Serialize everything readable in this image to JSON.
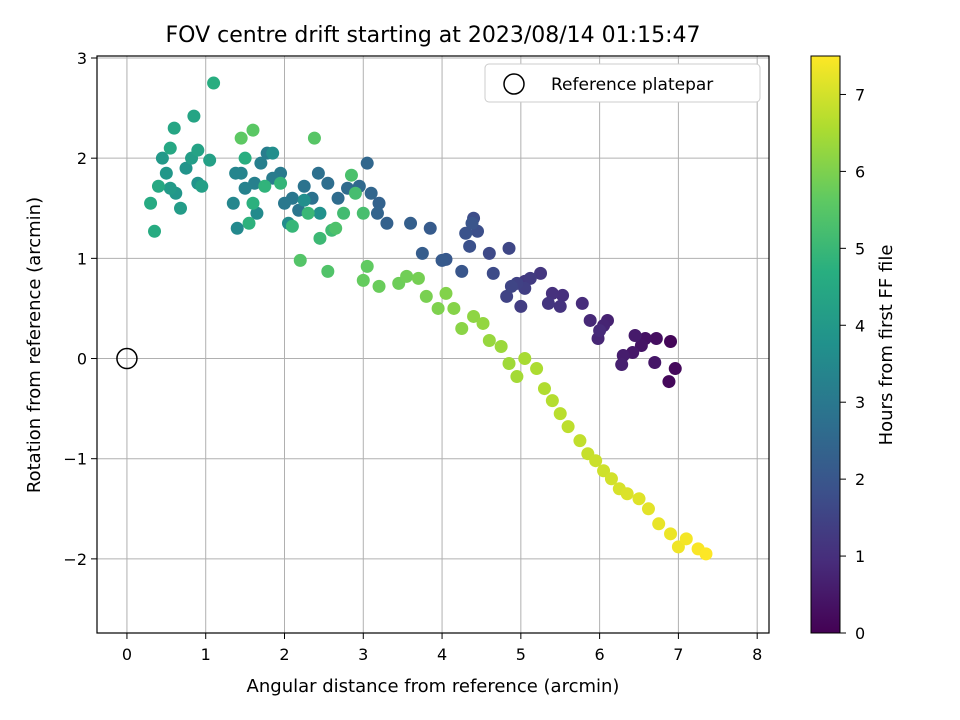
{
  "chart_data": {
    "type": "scatter",
    "title": "FOV centre drift starting at 2023/08/14 01:15:47",
    "xlabel": "Angular distance from reference (arcmin)",
    "ylabel": "Rotation from reference (arcmin)",
    "xlim": [
      -0.38,
      8.15
    ],
    "ylim": [
      -2.74,
      3.02
    ],
    "xticks": [
      0,
      1,
      2,
      3,
      4,
      5,
      6,
      7,
      8
    ],
    "yticks": [
      -2,
      -1,
      0,
      1,
      2,
      3
    ],
    "xtick_labels": [
      "0",
      "1",
      "2",
      "3",
      "4",
      "5",
      "6",
      "7",
      "8"
    ],
    "ytick_labels": [
      "−2",
      "−1",
      "0",
      "1",
      "2",
      "3"
    ],
    "grid": true,
    "legend": {
      "position": "top-right",
      "label": "Reference platepar"
    },
    "reference_point": {
      "x": 0,
      "y": 0
    },
    "colorbar": {
      "label": "Hours from first FF file",
      "range": [
        0,
        7.5
      ],
      "ticks": [
        0,
        1,
        2,
        3,
        4,
        5,
        6,
        7
      ],
      "colormap": "viridis"
    },
    "series": [
      {
        "points": [
          [
            6.9,
            0.17,
            0.1
          ],
          [
            6.88,
            -0.23,
            0.15
          ],
          [
            6.96,
            -0.1,
            0.2
          ],
          [
            6.72,
            0.2,
            0.3
          ],
          [
            6.58,
            0.2,
            0.35
          ],
          [
            6.53,
            0.13,
            0.4
          ],
          [
            6.7,
            -0.04,
            0.45
          ],
          [
            6.42,
            0.06,
            0.5
          ],
          [
            6.45,
            0.23,
            0.55
          ],
          [
            6.3,
            0.03,
            0.6
          ],
          [
            6.28,
            -0.06,
            0.65
          ],
          [
            6.1,
            0.38,
            0.7
          ],
          [
            6.05,
            0.33,
            0.75
          ],
          [
            5.98,
            0.2,
            0.8
          ],
          [
            5.88,
            0.38,
            0.85
          ],
          [
            6.0,
            0.28,
            0.9
          ],
          [
            5.78,
            0.55,
            0.95
          ],
          [
            5.53,
            0.63,
            1.0
          ],
          [
            5.4,
            0.65,
            1.05
          ],
          [
            5.5,
            0.52,
            1.1
          ],
          [
            5.35,
            0.55,
            1.15
          ],
          [
            5.25,
            0.85,
            1.2
          ],
          [
            5.05,
            0.77,
            1.25
          ],
          [
            5.12,
            0.8,
            1.3
          ],
          [
            5.0,
            0.52,
            1.35
          ],
          [
            5.05,
            0.7,
            1.4
          ],
          [
            4.95,
            0.75,
            1.45
          ],
          [
            4.82,
            0.62,
            1.5
          ],
          [
            4.88,
            0.72,
            1.55
          ],
          [
            4.85,
            1.1,
            1.6
          ],
          [
            4.6,
            1.05,
            1.65
          ],
          [
            4.65,
            0.85,
            1.7
          ],
          [
            4.4,
            1.4,
            1.75
          ],
          [
            4.45,
            1.27,
            1.8
          ],
          [
            4.35,
            1.12,
            1.85
          ],
          [
            4.3,
            1.25,
            1.9
          ],
          [
            4.38,
            1.35,
            1.95
          ],
          [
            4.25,
            0.87,
            2.0
          ],
          [
            4.05,
            0.99,
            2.05
          ],
          [
            4.0,
            0.98,
            2.1
          ],
          [
            3.85,
            1.3,
            2.15
          ],
          [
            3.75,
            1.05,
            2.2
          ],
          [
            3.6,
            1.35,
            2.25
          ],
          [
            3.3,
            1.35,
            2.3
          ],
          [
            3.2,
            1.55,
            2.35
          ],
          [
            3.18,
            1.45,
            2.4
          ],
          [
            3.1,
            1.65,
            2.45
          ],
          [
            3.05,
            1.95,
            2.5
          ],
          [
            2.95,
            1.72,
            2.55
          ],
          [
            2.8,
            1.7,
            2.6
          ],
          [
            2.68,
            1.6,
            2.65
          ],
          [
            2.55,
            1.75,
            2.7
          ],
          [
            2.43,
            1.85,
            2.75
          ],
          [
            2.35,
            1.6,
            2.8
          ],
          [
            2.25,
            1.72,
            2.85
          ],
          [
            2.18,
            1.48,
            2.9
          ],
          [
            2.1,
            1.6,
            2.95
          ],
          [
            2.0,
            1.55,
            3.0
          ],
          [
            1.95,
            1.85,
            3.05
          ],
          [
            1.85,
            1.8,
            3.1
          ],
          [
            1.78,
            2.05,
            3.15
          ],
          [
            1.7,
            1.95,
            3.2
          ],
          [
            1.62,
            1.75,
            3.25
          ],
          [
            1.5,
            1.7,
            3.3
          ],
          [
            1.45,
            1.85,
            3.35
          ],
          [
            1.38,
            1.85,
            3.4
          ],
          [
            1.35,
            1.55,
            3.45
          ],
          [
            1.4,
            1.3,
            3.5
          ],
          [
            1.65,
            1.45,
            3.55
          ],
          [
            2.05,
            1.35,
            3.6
          ],
          [
            1.85,
            2.05,
            3.65
          ],
          [
            2.25,
            1.58,
            3.7
          ],
          [
            2.45,
            1.45,
            3.75
          ],
          [
            0.9,
            1.75,
            3.8
          ],
          [
            0.75,
            1.9,
            3.85
          ],
          [
            0.62,
            1.65,
            3.9
          ],
          [
            0.5,
            1.85,
            3.95
          ],
          [
            0.45,
            2.0,
            4.0
          ],
          [
            0.55,
            1.7,
            4.05
          ],
          [
            0.68,
            1.5,
            4.1
          ],
          [
            0.82,
            2.0,
            4.15
          ],
          [
            0.95,
            1.72,
            4.2
          ],
          [
            1.05,
            1.98,
            4.25
          ],
          [
            0.9,
            2.08,
            4.3
          ],
          [
            0.85,
            2.42,
            4.35
          ],
          [
            0.6,
            2.3,
            4.4
          ],
          [
            0.55,
            2.1,
            4.45
          ],
          [
            0.4,
            1.72,
            4.5
          ],
          [
            0.3,
            1.55,
            4.55
          ],
          [
            0.35,
            1.27,
            4.6
          ],
          [
            1.1,
            2.75,
            4.65
          ],
          [
            1.5,
            2.0,
            4.7
          ],
          [
            1.6,
            1.55,
            4.75
          ],
          [
            1.55,
            1.35,
            4.8
          ],
          [
            1.75,
            1.72,
            4.85
          ],
          [
            1.95,
            1.75,
            4.9
          ],
          [
            2.1,
            1.32,
            4.95
          ],
          [
            2.3,
            1.45,
            5.0
          ],
          [
            2.45,
            1.2,
            5.05
          ],
          [
            2.6,
            1.28,
            5.1
          ],
          [
            2.75,
            1.45,
            5.15
          ],
          [
            2.9,
            1.65,
            5.2
          ],
          [
            3.0,
            1.45,
            5.25
          ],
          [
            2.85,
            1.83,
            5.3
          ],
          [
            2.65,
            1.3,
            5.35
          ],
          [
            2.55,
            0.87,
            5.4
          ],
          [
            2.2,
            0.98,
            5.45
          ],
          [
            2.38,
            2.2,
            5.5
          ],
          [
            1.6,
            2.28,
            5.55
          ],
          [
            1.45,
            2.2,
            5.6
          ],
          [
            3.05,
            0.92,
            5.65
          ],
          [
            3.0,
            0.78,
            5.7
          ],
          [
            3.2,
            0.72,
            5.75
          ],
          [
            3.45,
            0.75,
            5.8
          ],
          [
            3.55,
            0.82,
            5.85
          ],
          [
            3.7,
            0.8,
            5.9
          ],
          [
            3.8,
            0.62,
            5.95
          ],
          [
            3.95,
            0.5,
            6.0
          ],
          [
            4.05,
            0.65,
            6.05
          ],
          [
            4.15,
            0.5,
            6.1
          ],
          [
            4.25,
            0.3,
            6.15
          ],
          [
            4.4,
            0.42,
            6.2
          ],
          [
            4.52,
            0.35,
            6.25
          ],
          [
            4.6,
            0.18,
            6.3
          ],
          [
            4.75,
            0.12,
            6.35
          ],
          [
            4.85,
            -0.05,
            6.4
          ],
          [
            4.95,
            -0.18,
            6.45
          ],
          [
            5.05,
            0.0,
            6.5
          ],
          [
            5.2,
            -0.1,
            6.55
          ],
          [
            5.3,
            -0.3,
            6.6
          ],
          [
            5.4,
            -0.42,
            6.65
          ],
          [
            5.5,
            -0.55,
            6.7
          ],
          [
            5.6,
            -0.68,
            6.75
          ],
          [
            5.75,
            -0.82,
            6.8
          ],
          [
            5.85,
            -0.95,
            6.85
          ],
          [
            5.95,
            -1.02,
            6.9
          ],
          [
            6.05,
            -1.12,
            6.95
          ],
          [
            6.15,
            -1.2,
            7.0
          ],
          [
            6.25,
            -1.3,
            7.05
          ],
          [
            6.35,
            -1.35,
            7.1
          ],
          [
            6.5,
            -1.4,
            7.15
          ],
          [
            6.62,
            -1.5,
            7.2
          ],
          [
            6.75,
            -1.65,
            7.25
          ],
          [
            6.9,
            -1.75,
            7.3
          ],
          [
            7.0,
            -1.88,
            7.35
          ],
          [
            7.1,
            -1.8,
            7.4
          ],
          [
            7.25,
            -1.9,
            7.45
          ],
          [
            7.35,
            -1.95,
            7.5
          ]
        ]
      }
    ]
  }
}
